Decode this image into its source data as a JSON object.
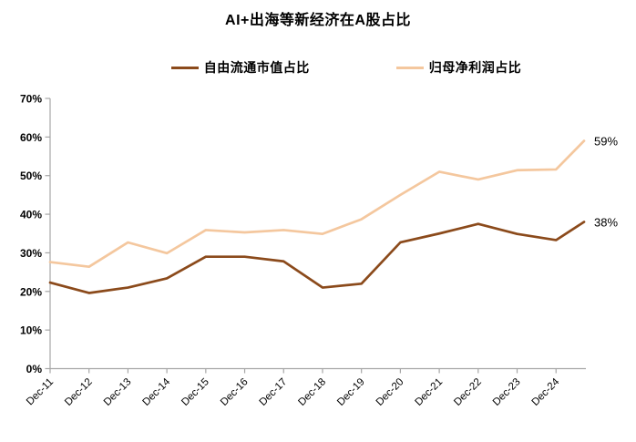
{
  "chart_data": {
    "type": "line",
    "title": "AI+出海等新经济在A股占比",
    "categories": [
      "Dec-11",
      "Dec-12",
      "Dec-13",
      "Dec-14",
      "Dec-15",
      "Dec-16",
      "Dec-17",
      "Dec-18",
      "Dec-19",
      "Dec-20",
      "Dec-21",
      "Dec-22",
      "Dec-23",
      "Dec-24"
    ],
    "series": [
      {
        "name": "自由流通市值占比",
        "color": "#8B4A1B",
        "values": [
          22.3,
          19.6,
          21.0,
          23.4,
          29.0,
          29.0,
          27.8,
          21.0,
          22.0,
          32.7,
          35.0,
          37.5,
          34.9,
          33.3
        ],
        "latest_value": 38.0,
        "end_label": "38%"
      },
      {
        "name": "归母净利润占比",
        "color": "#F4C79E",
        "values": [
          27.6,
          26.4,
          32.7,
          29.9,
          35.9,
          35.3,
          35.9,
          34.9,
          38.7,
          45.0,
          51.0,
          49.0,
          51.4,
          51.6
        ],
        "latest_value": 59.0,
        "end_label": "59%"
      }
    ],
    "y_ticks": [
      "0%",
      "10%",
      "20%",
      "30%",
      "40%",
      "50%",
      "60%",
      "70%"
    ],
    "ylim": [
      0,
      70
    ],
    "xlabel": "",
    "ylabel": "",
    "grid": false,
    "legend_position": "top",
    "axis_color": "#A6A6A6",
    "text_color": "#000000"
  }
}
